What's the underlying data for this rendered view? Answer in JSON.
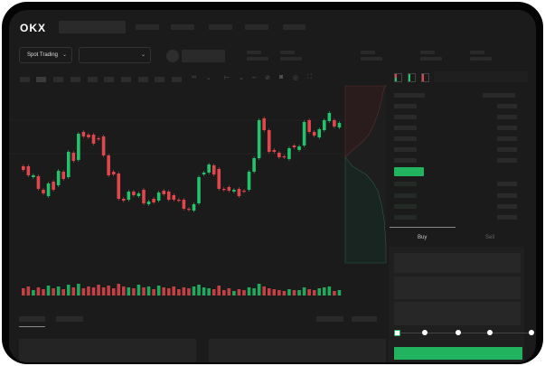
{
  "header": {
    "logo": "OKX"
  },
  "toolbar": {
    "market_dropdown": "Spot Trading",
    "pair_dropdown": ""
  },
  "order_panel": {
    "tabs": [
      "Buy",
      "Sell"
    ],
    "active_tab": "Buy",
    "slider_percent": 0
  },
  "colors": {
    "up": "#22c36a",
    "down": "#e0474c",
    "accent": "#22b35e",
    "background": "#1b1b1b"
  },
  "icons": [
    "chevron-down-icon",
    "camera-icon",
    "settings-icon",
    "fullscreen-icon",
    "orderbook-both-icon",
    "orderbook-bids-icon",
    "orderbook-asks-icon"
  ],
  "chart_data": {
    "type": "candlestick",
    "candles": [
      {
        "o": 59,
        "c": 55
      },
      {
        "o": 59,
        "c": 49
      },
      {
        "o": 47,
        "c": 49
      },
      {
        "o": 48,
        "c": 34
      },
      {
        "o": 33,
        "c": 29
      },
      {
        "o": 26,
        "c": 40
      },
      {
        "o": 42,
        "c": 33
      },
      {
        "o": 38,
        "c": 54
      },
      {
        "o": 53,
        "c": 45
      },
      {
        "o": 47,
        "c": 75
      },
      {
        "o": 74,
        "c": 65
      },
      {
        "o": 66,
        "c": 95
      },
      {
        "o": 97,
        "c": 92
      },
      {
        "o": 94,
        "c": 91
      },
      {
        "o": 94,
        "c": 84
      },
      {
        "o": 90,
        "c": 89
      },
      {
        "o": 92,
        "c": 71
      },
      {
        "o": 71,
        "c": 49
      },
      {
        "o": 53,
        "c": 50
      },
      {
        "o": 51,
        "c": 23
      },
      {
        "o": 23,
        "c": 21
      },
      {
        "o": 22,
        "c": 31
      },
      {
        "o": 31,
        "c": 27
      },
      {
        "o": 26,
        "c": 29
      },
      {
        "o": 33,
        "c": 18
      },
      {
        "o": 17,
        "c": 20
      },
      {
        "o": 23,
        "c": 19
      },
      {
        "o": 21,
        "c": 30
      },
      {
        "o": 32,
        "c": 28
      },
      {
        "o": 31,
        "c": 22
      },
      {
        "o": 27,
        "c": 22
      },
      {
        "o": 22,
        "c": 21
      },
      {
        "o": 22,
        "c": 12
      },
      {
        "o": 12,
        "c": 11
      },
      {
        "o": 10,
        "c": 17
      },
      {
        "o": 18,
        "c": 47
      },
      {
        "o": 50,
        "c": 52
      },
      {
        "o": 52,
        "c": 61
      },
      {
        "o": 60,
        "c": 50
      },
      {
        "o": 56,
        "c": 34
      },
      {
        "o": 34,
        "c": 33
      },
      {
        "o": 36,
        "c": 32
      },
      {
        "o": 31,
        "c": 33
      },
      {
        "o": 34,
        "c": 26
      },
      {
        "o": 32,
        "c": 31
      },
      {
        "o": 33,
        "c": 53
      },
      {
        "o": 53,
        "c": 68
      },
      {
        "o": 68,
        "c": 110
      },
      {
        "o": 112,
        "c": 99
      },
      {
        "o": 99,
        "c": 75
      },
      {
        "o": 77,
        "c": 75
      },
      {
        "o": 74,
        "c": 69
      },
      {
        "o": 70,
        "c": 69
      },
      {
        "o": 67,
        "c": 79
      },
      {
        "o": 82,
        "c": 80
      },
      {
        "o": 77,
        "c": 81
      },
      {
        "o": 82,
        "c": 108
      },
      {
        "o": 110,
        "c": 97
      },
      {
        "o": 97,
        "c": 93
      },
      {
        "o": 91,
        "c": 100
      },
      {
        "o": 99,
        "c": 110
      },
      {
        "o": 109,
        "c": 118
      },
      {
        "o": 110,
        "c": 103
      },
      {
        "o": 102,
        "c": 107
      }
    ],
    "volumes": [
      8,
      10,
      6,
      9,
      7,
      11,
      8,
      10,
      7,
      12,
      9,
      13,
      8,
      10,
      9,
      12,
      9,
      11,
      8,
      13,
      10,
      9,
      8,
      12,
      9,
      10,
      7,
      11,
      9,
      8,
      10,
      7,
      9,
      8,
      10,
      12,
      9,
      8,
      7,
      11,
      6,
      8,
      5,
      7,
      6,
      9,
      8,
      13,
      10,
      8,
      7,
      6,
      5,
      7,
      6,
      6,
      9,
      7,
      6,
      8,
      9,
      10,
      5,
      6
    ]
  }
}
